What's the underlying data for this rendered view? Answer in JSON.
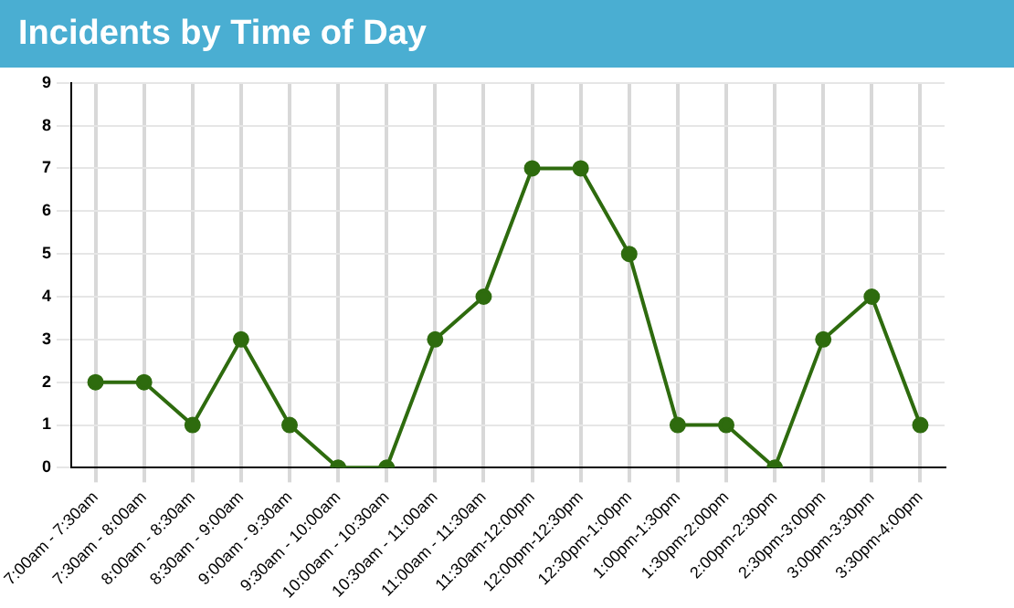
{
  "chart_data": {
    "type": "line",
    "title": "Incidents by Time of Day",
    "categories": [
      "7:00am - 7:30am",
      "7:30am - 8:00am",
      "8:00am - 8:30am",
      "8:30am - 9:00am",
      "9:00am - 9:30am",
      "9:30am - 10:00am",
      "10:00am - 10:30am",
      "10:30am - 11:00am",
      "11:00am - 11:30am",
      "11:30am-12:00pm",
      "12:00pm-12:30pm",
      "12:30pm-1:00pm",
      "1:00pm-1:30pm",
      "1:30pm-2:00pm",
      "2:00pm-2:30pm",
      "2:30pm-3:00pm",
      "3:00pm-3:30pm",
      "3:30pm-4:00pm"
    ],
    "series": [
      {
        "color": "#2e6b0e",
        "values": [
          2,
          2,
          1,
          3,
          1,
          0,
          0,
          3,
          4,
          7,
          7,
          5,
          1,
          1,
          0,
          3,
          4,
          1
        ]
      }
    ],
    "ylim": [
      0,
      9
    ],
    "yticks": [
      0,
      1,
      2,
      3,
      4,
      5,
      6,
      7,
      8,
      9
    ],
    "grid": true,
    "legend": false,
    "marker": "circle",
    "line_style": "solid"
  }
}
